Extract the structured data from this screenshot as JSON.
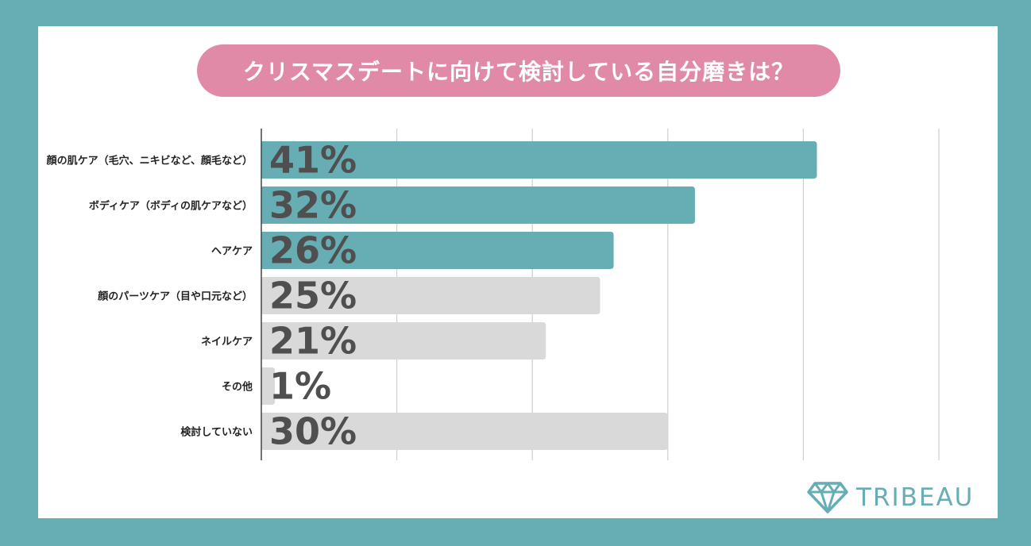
{
  "title": "クリスマスデートに向けて検討している自分磨きは？",
  "brand": {
    "name": "TRIBEAU",
    "logo_icon": "diamond-icon"
  },
  "colors": {
    "frame": "#67adb4",
    "title_bg": "#e18aa8",
    "highlight_bar": "#67adb4",
    "muted_bar": "#d9d9d9",
    "value_text": "#4f4f4f",
    "grid": "#cfcfcf"
  },
  "chart_data": {
    "type": "bar",
    "orientation": "horizontal",
    "categories": [
      "顔の肌ケア（毛穴、ニキビなど、顔毛など）",
      "ボディケア（ボディの肌ケアなど）",
      "ヘアケア",
      "顔のパーツケア（目や口元など）",
      "ネイルケア",
      "その他",
      "検討していない"
    ],
    "values": [
      41,
      32,
      26,
      25,
      21,
      1,
      30
    ],
    "value_labels": [
      "41%",
      "32%",
      "26%",
      "25%",
      "21%",
      "1%",
      "30%"
    ],
    "highlighted": [
      true,
      true,
      true,
      false,
      false,
      false,
      false
    ],
    "xlim": [
      0,
      50
    ],
    "grid": true,
    "legend": "none"
  }
}
